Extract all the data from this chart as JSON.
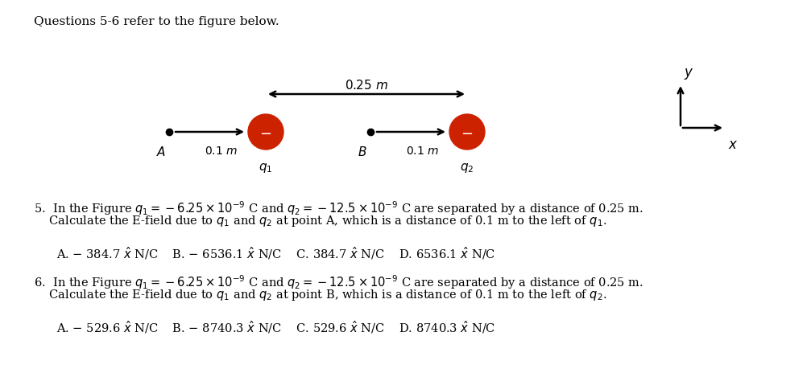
{
  "title": "Questions 5-6 refer to the figure below.",
  "bg_color": "#ffffff",
  "charge_color": "#cc2200",
  "q5_line1": "5.  In the Figure $q_1 = -6.25 \\times 10^{-9}$ C and $q_2 = -12.5 \\times 10^{-9}$ C are separated by a distance of 0.25 m.",
  "q5_line2": "    Calculate the E-field due to $q_1$ and $q_2$ at point A, which is a distance of 0.1 m to the left of $q_1$.",
  "q5_answers": "A. $-$ 384.7 $\\hat{x}$ N/C    B. $-$ 6536.1 $\\hat{x}$ N/C    C. 384.7 $\\hat{x}$ N/C    D. 6536.1 $\\hat{x}$ N/C",
  "q6_line1": "6.  In the Figure $q_1 = -6.25 \\times 10^{-9}$ C and $q_2 = -12.5 \\times 10^{-9}$ C are separated by a distance of 0.25 m.",
  "q6_line2": "    Calculate the E-field due to $q_1$ and $q_2$ at point B, which is a distance of 0.1 m to the left of $q_2$.",
  "q6_answers": "A. $-$ 529.6 $\\hat{x}$ N/C    B. $-$ 8740.3 $\\hat{x}$ N/C    C. 529.6 $\\hat{x}$ N/C    D. 8740.3 $\\hat{x}$ N/C"
}
